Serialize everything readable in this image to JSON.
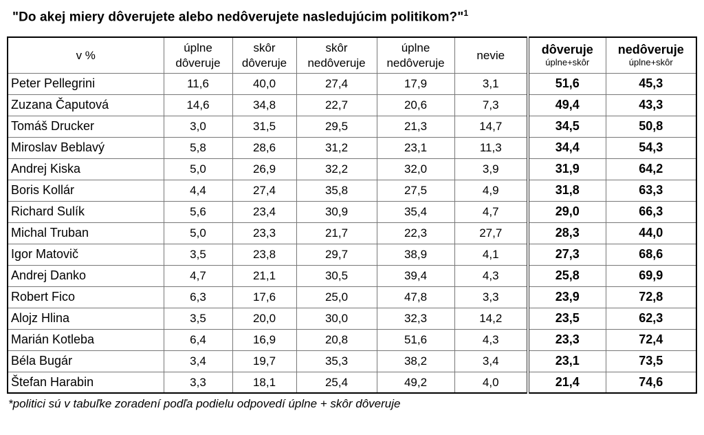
{
  "page": {
    "title": "\"Do akej miery dôverujete alebo nedôverujete nasledujúcim politikom?\"",
    "title_superscript": "1",
    "footnote": "*politici sú v tabuľke zoradení podľa podielu odpovedí úplne + skôr dôveruje"
  },
  "table": {
    "unit_header": "v %",
    "columns": [
      {
        "line1": "úplne",
        "line2": "dôveruje"
      },
      {
        "line1": "skôr",
        "line2": "dôveruje"
      },
      {
        "line1": "skôr",
        "line2": "nedôveruje"
      },
      {
        "line1": "úplne",
        "line2": "nedôveruje"
      },
      {
        "line1": "nevie"
      }
    ],
    "summary_columns": [
      {
        "label": "dôveruje",
        "sublabel": "úplne+skôr"
      },
      {
        "label": "nedôveruje",
        "sublabel": "úplne+skôr"
      }
    ],
    "rows": [
      {
        "name": "Peter Pellegrini",
        "values": [
          "11,6",
          "40,0",
          "27,4",
          "17,9",
          "3,1"
        ],
        "trust": "51,6",
        "distrust": "45,3"
      },
      {
        "name": "Zuzana Čaputová",
        "values": [
          "14,6",
          "34,8",
          "22,7",
          "20,6",
          "7,3"
        ],
        "trust": "49,4",
        "distrust": "43,3"
      },
      {
        "name": "Tomáš Drucker",
        "values": [
          "3,0",
          "31,5",
          "29,5",
          "21,3",
          "14,7"
        ],
        "trust": "34,5",
        "distrust": "50,8"
      },
      {
        "name": "Miroslav Beblavý",
        "values": [
          "5,8",
          "28,6",
          "31,2",
          "23,1",
          "11,3"
        ],
        "trust": "34,4",
        "distrust": "54,3"
      },
      {
        "name": "Andrej Kiska",
        "values": [
          "5,0",
          "26,9",
          "32,2",
          "32,0",
          "3,9"
        ],
        "trust": "31,9",
        "distrust": "64,2"
      },
      {
        "name": "Boris Kollár",
        "values": [
          "4,4",
          "27,4",
          "35,8",
          "27,5",
          "4,9"
        ],
        "trust": "31,8",
        "distrust": "63,3"
      },
      {
        "name": "Richard Sulík",
        "values": [
          "5,6",
          "23,4",
          "30,9",
          "35,4",
          "4,7"
        ],
        "trust": "29,0",
        "distrust": "66,3"
      },
      {
        "name": "Michal Truban",
        "values": [
          "5,0",
          "23,3",
          "21,7",
          "22,3",
          "27,7"
        ],
        "trust": "28,3",
        "distrust": "44,0"
      },
      {
        "name": "Igor Matovič",
        "values": [
          "3,5",
          "23,8",
          "29,7",
          "38,9",
          "4,1"
        ],
        "trust": "27,3",
        "distrust": "68,6"
      },
      {
        "name": "Andrej Danko",
        "values": [
          "4,7",
          "21,1",
          "30,5",
          "39,4",
          "4,3"
        ],
        "trust": "25,8",
        "distrust": "69,9"
      },
      {
        "name": "Robert Fico",
        "values": [
          "6,3",
          "17,6",
          "25,0",
          "47,8",
          "3,3"
        ],
        "trust": "23,9",
        "distrust": "72,8"
      },
      {
        "name": "Alojz Hlina",
        "values": [
          "3,5",
          "20,0",
          "30,0",
          "32,3",
          "14,2"
        ],
        "trust": "23,5",
        "distrust": "62,3"
      },
      {
        "name": "Marián Kotleba",
        "values": [
          "6,4",
          "16,9",
          "20,8",
          "51,6",
          "4,3"
        ],
        "trust": "23,3",
        "distrust": "72,4"
      },
      {
        "name": "Béla Bugár",
        "values": [
          "3,4",
          "19,7",
          "35,3",
          "38,2",
          "3,4"
        ],
        "trust": "23,1",
        "distrust": "73,5"
      },
      {
        "name": "Štefan Harabin",
        "values": [
          "3,3",
          "18,1",
          "25,4",
          "49,2",
          "4,0"
        ],
        "trust": "21,4",
        "distrust": "74,6"
      }
    ]
  },
  "chart_data": {
    "type": "table",
    "title": "\"Do akej miery dôverujete alebo nedôverujete nasledujúcim politikom?\"",
    "unit": "v %",
    "columns": [
      "úplne dôveruje",
      "skôr dôveruje",
      "skôr nedôveruje",
      "úplne nedôveruje",
      "nevie",
      "dôveruje (úplne+skôr)",
      "nedôveruje (úplne+skôr)"
    ],
    "rows": [
      {
        "name": "Peter Pellegrini",
        "values": [
          11.6,
          40.0,
          27.4,
          17.9,
          3.1,
          51.6,
          45.3
        ]
      },
      {
        "name": "Zuzana Čaputová",
        "values": [
          14.6,
          34.8,
          22.7,
          20.6,
          7.3,
          49.4,
          43.3
        ]
      },
      {
        "name": "Tomáš Drucker",
        "values": [
          3.0,
          31.5,
          29.5,
          21.3,
          14.7,
          34.5,
          50.8
        ]
      },
      {
        "name": "Miroslav Beblavý",
        "values": [
          5.8,
          28.6,
          31.2,
          23.1,
          11.3,
          34.4,
          54.3
        ]
      },
      {
        "name": "Andrej Kiska",
        "values": [
          5.0,
          26.9,
          32.2,
          32.0,
          3.9,
          31.9,
          64.2
        ]
      },
      {
        "name": "Boris Kollár",
        "values": [
          4.4,
          27.4,
          35.8,
          27.5,
          4.9,
          31.8,
          63.3
        ]
      },
      {
        "name": "Richard Sulík",
        "values": [
          5.6,
          23.4,
          30.9,
          35.4,
          4.7,
          29.0,
          66.3
        ]
      },
      {
        "name": "Michal Truban",
        "values": [
          5.0,
          23.3,
          21.7,
          22.3,
          27.7,
          28.3,
          44.0
        ]
      },
      {
        "name": "Igor Matovič",
        "values": [
          3.5,
          23.8,
          29.7,
          38.9,
          4.1,
          27.3,
          68.6
        ]
      },
      {
        "name": "Andrej Danko",
        "values": [
          4.7,
          21.1,
          30.5,
          39.4,
          4.3,
          25.8,
          69.9
        ]
      },
      {
        "name": "Robert Fico",
        "values": [
          6.3,
          17.6,
          25.0,
          47.8,
          3.3,
          23.9,
          72.8
        ]
      },
      {
        "name": "Alojz Hlina",
        "values": [
          3.5,
          20.0,
          30.0,
          32.3,
          14.2,
          23.5,
          62.3
        ]
      },
      {
        "name": "Marián Kotleba",
        "values": [
          6.4,
          16.9,
          20.8,
          51.6,
          4.3,
          23.3,
          72.4
        ]
      },
      {
        "name": "Béla Bugár",
        "values": [
          3.4,
          19.7,
          35.3,
          38.2,
          3.4,
          23.1,
          73.5
        ]
      },
      {
        "name": "Štefan Harabin",
        "values": [
          3.3,
          18.1,
          25.4,
          49.2,
          4.0,
          21.4,
          74.6
        ]
      }
    ],
    "footnote": "*politici sú v tabuľke zoradení podľa podielu odpovedí úplne + skôr dôveruje"
  }
}
